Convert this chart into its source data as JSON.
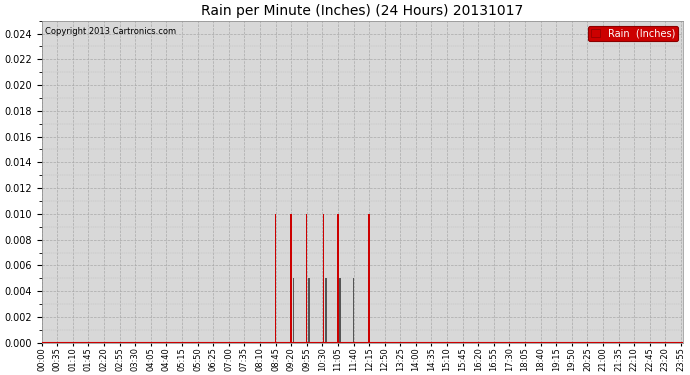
{
  "title": "Rain per Minute (Inches) (24 Hours) 20131017",
  "legend_label": "Rain  (Inches)",
  "copyright_text": "Copyright 2013 Cartronics.com",
  "bar_color": "#cc0000",
  "bar_color_dark": "#555555",
  "background_color": "#d8d8d8",
  "fig_background": "#ffffff",
  "legend_bg": "#cc0000",
  "legend_text_color": "#ffffff",
  "ylim": [
    0,
    0.025
  ],
  "yticks": [
    0.0,
    0.002,
    0.004,
    0.006,
    0.008,
    0.01,
    0.012,
    0.014,
    0.016,
    0.018,
    0.02,
    0.022,
    0.024
  ],
  "rain_data_red": {
    "525": 0.01,
    "560": 0.01,
    "595": 0.01,
    "633": 0.01,
    "665": 0.01,
    "735": 0.01
  },
  "rain_data_dark": {
    "565": 0.005,
    "600": 0.005,
    "638": 0.005,
    "670": 0.005,
    "700": 0.005
  },
  "total_minutes": 1440,
  "x_tick_interval": 35,
  "figwidth": 6.9,
  "figheight": 3.75,
  "dpi": 100
}
